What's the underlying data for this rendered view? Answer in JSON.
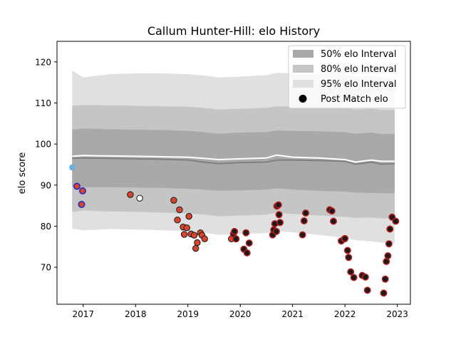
{
  "chart_data": {
    "type": "scatter",
    "title": "Callum Hunter-Hill: elo History",
    "xlabel": "",
    "ylabel": "elo score",
    "xlim": [
      2016.5,
      2023.25
    ],
    "ylim": [
      61,
      125
    ],
    "x_ticks": [
      2017,
      2018,
      2019,
      2020,
      2021,
      2022,
      2023
    ],
    "x_tick_labels": [
      "2017",
      "2018",
      "2019",
      "2020",
      "2021",
      "2022",
      "2023"
    ],
    "y_ticks": [
      70,
      80,
      90,
      100,
      110,
      120
    ],
    "y_tick_labels": [
      "70",
      "80",
      "90",
      "100",
      "110",
      "120"
    ],
    "grid": false,
    "legend": {
      "position": "top-right",
      "entries": [
        "50% elo Interval",
        "80% elo Interval",
        "95% elo Interval",
        "Post Match elo"
      ]
    },
    "colors": {
      "band50": "#a9a9a9",
      "band80": "#c5c5c5",
      "band95": "#e0e0e0",
      "mean_line": "#808080",
      "median_line": "#ffffff",
      "point_loss_fill": "#d9442c",
      "point_win_fill": "#1a1a1a",
      "point_draw_fill": "#ffffff",
      "point_first_fill": "#6aaee6",
      "edge_blue": "#2b2bb8",
      "edge_red": "#b02020"
    },
    "series_bands": {
      "x": [
        2016.79,
        2017.0,
        2017.5,
        2018.0,
        2018.5,
        2019.0,
        2019.3,
        2019.6,
        2020.0,
        2020.5,
        2020.7,
        2021.0,
        2021.5,
        2022.0,
        2022.2,
        2022.5,
        2022.7,
        2022.95
      ],
      "mean": [
        96.5,
        96.6,
        96.5,
        96.4,
        96.3,
        96.1,
        95.6,
        95.2,
        95.5,
        95.6,
        96.1,
        96.1,
        96.0,
        95.8,
        95.1,
        95.6,
        95.1,
        95.2
      ],
      "median": [
        97.0,
        97.2,
        97.1,
        97.0,
        96.9,
        96.8,
        96.5,
        96.2,
        96.4,
        96.6,
        97.3,
        96.8,
        96.6,
        96.2,
        95.6,
        96.1,
        95.8,
        95.8
      ],
      "p50_low": [
        89.6,
        89.5,
        89.5,
        89.4,
        89.3,
        89.1,
        88.9,
        88.6,
        88.7,
        88.9,
        89.2,
        88.9,
        88.6,
        88.4,
        88.2,
        88.1,
        88.0,
        88.0
      ],
      "p50_high": [
        103.5,
        103.8,
        103.6,
        103.5,
        103.4,
        103.2,
        102.9,
        102.5,
        102.8,
        102.9,
        103.3,
        103.2,
        103.1,
        102.9,
        102.5,
        102.8,
        102.4,
        102.5
      ],
      "p80_low": [
        83.5,
        83.8,
        83.6,
        83.5,
        83.3,
        83.1,
        82.8,
        82.4,
        82.6,
        82.8,
        83.3,
        83.0,
        82.6,
        82.3,
        82.0,
        82.1,
        81.9,
        81.9
      ],
      "p80_high": [
        109.3,
        109.5,
        109.4,
        109.3,
        109.2,
        109.1,
        108.8,
        108.4,
        108.6,
        108.8,
        109.2,
        109.1,
        109.0,
        108.8,
        108.4,
        108.6,
        108.3,
        108.3
      ],
      "p95_low": [
        79.4,
        79.0,
        79.3,
        79.2,
        79.0,
        78.8,
        78.4,
        77.9,
        78.1,
        78.3,
        78.8,
        78.5,
        77.9,
        77.2,
        76.6,
        76.3,
        76.0,
        75.8
      ],
      "p95_high": [
        117.9,
        116.2,
        117.0,
        117.2,
        117.2,
        117.0,
        116.7,
        116.2,
        116.4,
        116.8,
        117.3,
        117.2,
        117.1,
        116.9,
        116.4,
        116.6,
        116.2,
        116.2
      ]
    },
    "points": [
      {
        "x": 2016.79,
        "y": 94.3,
        "fill": "first",
        "edge": "none"
      },
      {
        "x": 2016.88,
        "y": 89.7,
        "fill": "loss",
        "edge": "blue"
      },
      {
        "x": 2016.97,
        "y": 85.3,
        "fill": "loss",
        "edge": "blue"
      },
      {
        "x": 2016.99,
        "y": 88.6,
        "fill": "loss",
        "edge": "blue"
      },
      {
        "x": 2017.9,
        "y": 87.7,
        "fill": "loss",
        "edge": "dark"
      },
      {
        "x": 2018.08,
        "y": 86.8,
        "fill": "draw",
        "edge": "dark"
      },
      {
        "x": 2018.73,
        "y": 86.3,
        "fill": "loss",
        "edge": "dark"
      },
      {
        "x": 2018.8,
        "y": 81.5,
        "fill": "loss",
        "edge": "dark"
      },
      {
        "x": 2018.84,
        "y": 84.0,
        "fill": "loss",
        "edge": "dark"
      },
      {
        "x": 2018.91,
        "y": 79.8,
        "fill": "loss",
        "edge": "dark"
      },
      {
        "x": 2018.93,
        "y": 78.0,
        "fill": "loss",
        "edge": "dark"
      },
      {
        "x": 2018.98,
        "y": 79.6,
        "fill": "loss",
        "edge": "dark"
      },
      {
        "x": 2019.02,
        "y": 82.4,
        "fill": "loss",
        "edge": "dark"
      },
      {
        "x": 2019.06,
        "y": 78.1,
        "fill": "loss",
        "edge": "dark"
      },
      {
        "x": 2019.12,
        "y": 77.8,
        "fill": "loss",
        "edge": "dark"
      },
      {
        "x": 2019.15,
        "y": 74.6,
        "fill": "loss",
        "edge": "dark"
      },
      {
        "x": 2019.18,
        "y": 76.0,
        "fill": "loss",
        "edge": "dark"
      },
      {
        "x": 2019.24,
        "y": 78.4,
        "fill": "loss",
        "edge": "dark"
      },
      {
        "x": 2019.27,
        "y": 77.8,
        "fill": "loss",
        "edge": "dark"
      },
      {
        "x": 2019.32,
        "y": 76.9,
        "fill": "loss",
        "edge": "dark"
      },
      {
        "x": 2019.83,
        "y": 76.9,
        "fill": "loss",
        "edge": "dark"
      },
      {
        "x": 2019.87,
        "y": 78.1,
        "fill": "win",
        "edge": "red"
      },
      {
        "x": 2019.89,
        "y": 78.7,
        "fill": "win",
        "edge": "red"
      },
      {
        "x": 2019.92,
        "y": 76.9,
        "fill": "win",
        "edge": "red"
      },
      {
        "x": 2020.07,
        "y": 74.4,
        "fill": "win",
        "edge": "red"
      },
      {
        "x": 2020.11,
        "y": 78.4,
        "fill": "win",
        "edge": "red"
      },
      {
        "x": 2020.13,
        "y": 73.5,
        "fill": "win",
        "edge": "red"
      },
      {
        "x": 2020.17,
        "y": 75.9,
        "fill": "win",
        "edge": "red"
      },
      {
        "x": 2020.62,
        "y": 77.9,
        "fill": "win",
        "edge": "red"
      },
      {
        "x": 2020.64,
        "y": 79.1,
        "fill": "win",
        "edge": "red"
      },
      {
        "x": 2020.66,
        "y": 80.6,
        "fill": "win",
        "edge": "red"
      },
      {
        "x": 2020.69,
        "y": 78.7,
        "fill": "win",
        "edge": "red"
      },
      {
        "x": 2020.7,
        "y": 84.9,
        "fill": "win",
        "edge": "red"
      },
      {
        "x": 2020.73,
        "y": 85.2,
        "fill": "win",
        "edge": "red"
      },
      {
        "x": 2020.74,
        "y": 82.8,
        "fill": "win",
        "edge": "red"
      },
      {
        "x": 2020.76,
        "y": 80.9,
        "fill": "win",
        "edge": "red"
      },
      {
        "x": 2021.19,
        "y": 77.9,
        "fill": "win",
        "edge": "red"
      },
      {
        "x": 2021.22,
        "y": 81.3,
        "fill": "win",
        "edge": "red"
      },
      {
        "x": 2021.25,
        "y": 83.2,
        "fill": "win",
        "edge": "red"
      },
      {
        "x": 2021.71,
        "y": 84.0,
        "fill": "win",
        "edge": "red"
      },
      {
        "x": 2021.75,
        "y": 83.7,
        "fill": "win",
        "edge": "red"
      },
      {
        "x": 2021.78,
        "y": 81.2,
        "fill": "win",
        "edge": "red"
      },
      {
        "x": 2021.93,
        "y": 76.4,
        "fill": "win",
        "edge": "red"
      },
      {
        "x": 2021.99,
        "y": 76.9,
        "fill": "win",
        "edge": "red"
      },
      {
        "x": 2022.0,
        "y": 77.0,
        "fill": "win",
        "edge": "red"
      },
      {
        "x": 2022.05,
        "y": 74.1,
        "fill": "win",
        "edge": "red"
      },
      {
        "x": 2022.07,
        "y": 72.4,
        "fill": "win",
        "edge": "red"
      },
      {
        "x": 2022.11,
        "y": 68.9,
        "fill": "win",
        "edge": "red"
      },
      {
        "x": 2022.17,
        "y": 67.5,
        "fill": "win",
        "edge": "red"
      },
      {
        "x": 2022.33,
        "y": 68.0,
        "fill": "win",
        "edge": "red"
      },
      {
        "x": 2022.39,
        "y": 67.6,
        "fill": "win",
        "edge": "red"
      },
      {
        "x": 2022.43,
        "y": 64.4,
        "fill": "win",
        "edge": "red"
      },
      {
        "x": 2022.74,
        "y": 63.7,
        "fill": "win",
        "edge": "red"
      },
      {
        "x": 2022.77,
        "y": 67.1,
        "fill": "win",
        "edge": "red"
      },
      {
        "x": 2022.79,
        "y": 71.4,
        "fill": "win",
        "edge": "red"
      },
      {
        "x": 2022.82,
        "y": 72.8,
        "fill": "win",
        "edge": "red"
      },
      {
        "x": 2022.84,
        "y": 75.7,
        "fill": "win",
        "edge": "red"
      },
      {
        "x": 2022.86,
        "y": 79.3,
        "fill": "win",
        "edge": "red"
      },
      {
        "x": 2022.9,
        "y": 82.2,
        "fill": "win",
        "edge": "red"
      },
      {
        "x": 2022.97,
        "y": 81.2,
        "fill": "win",
        "edge": "red"
      }
    ]
  }
}
